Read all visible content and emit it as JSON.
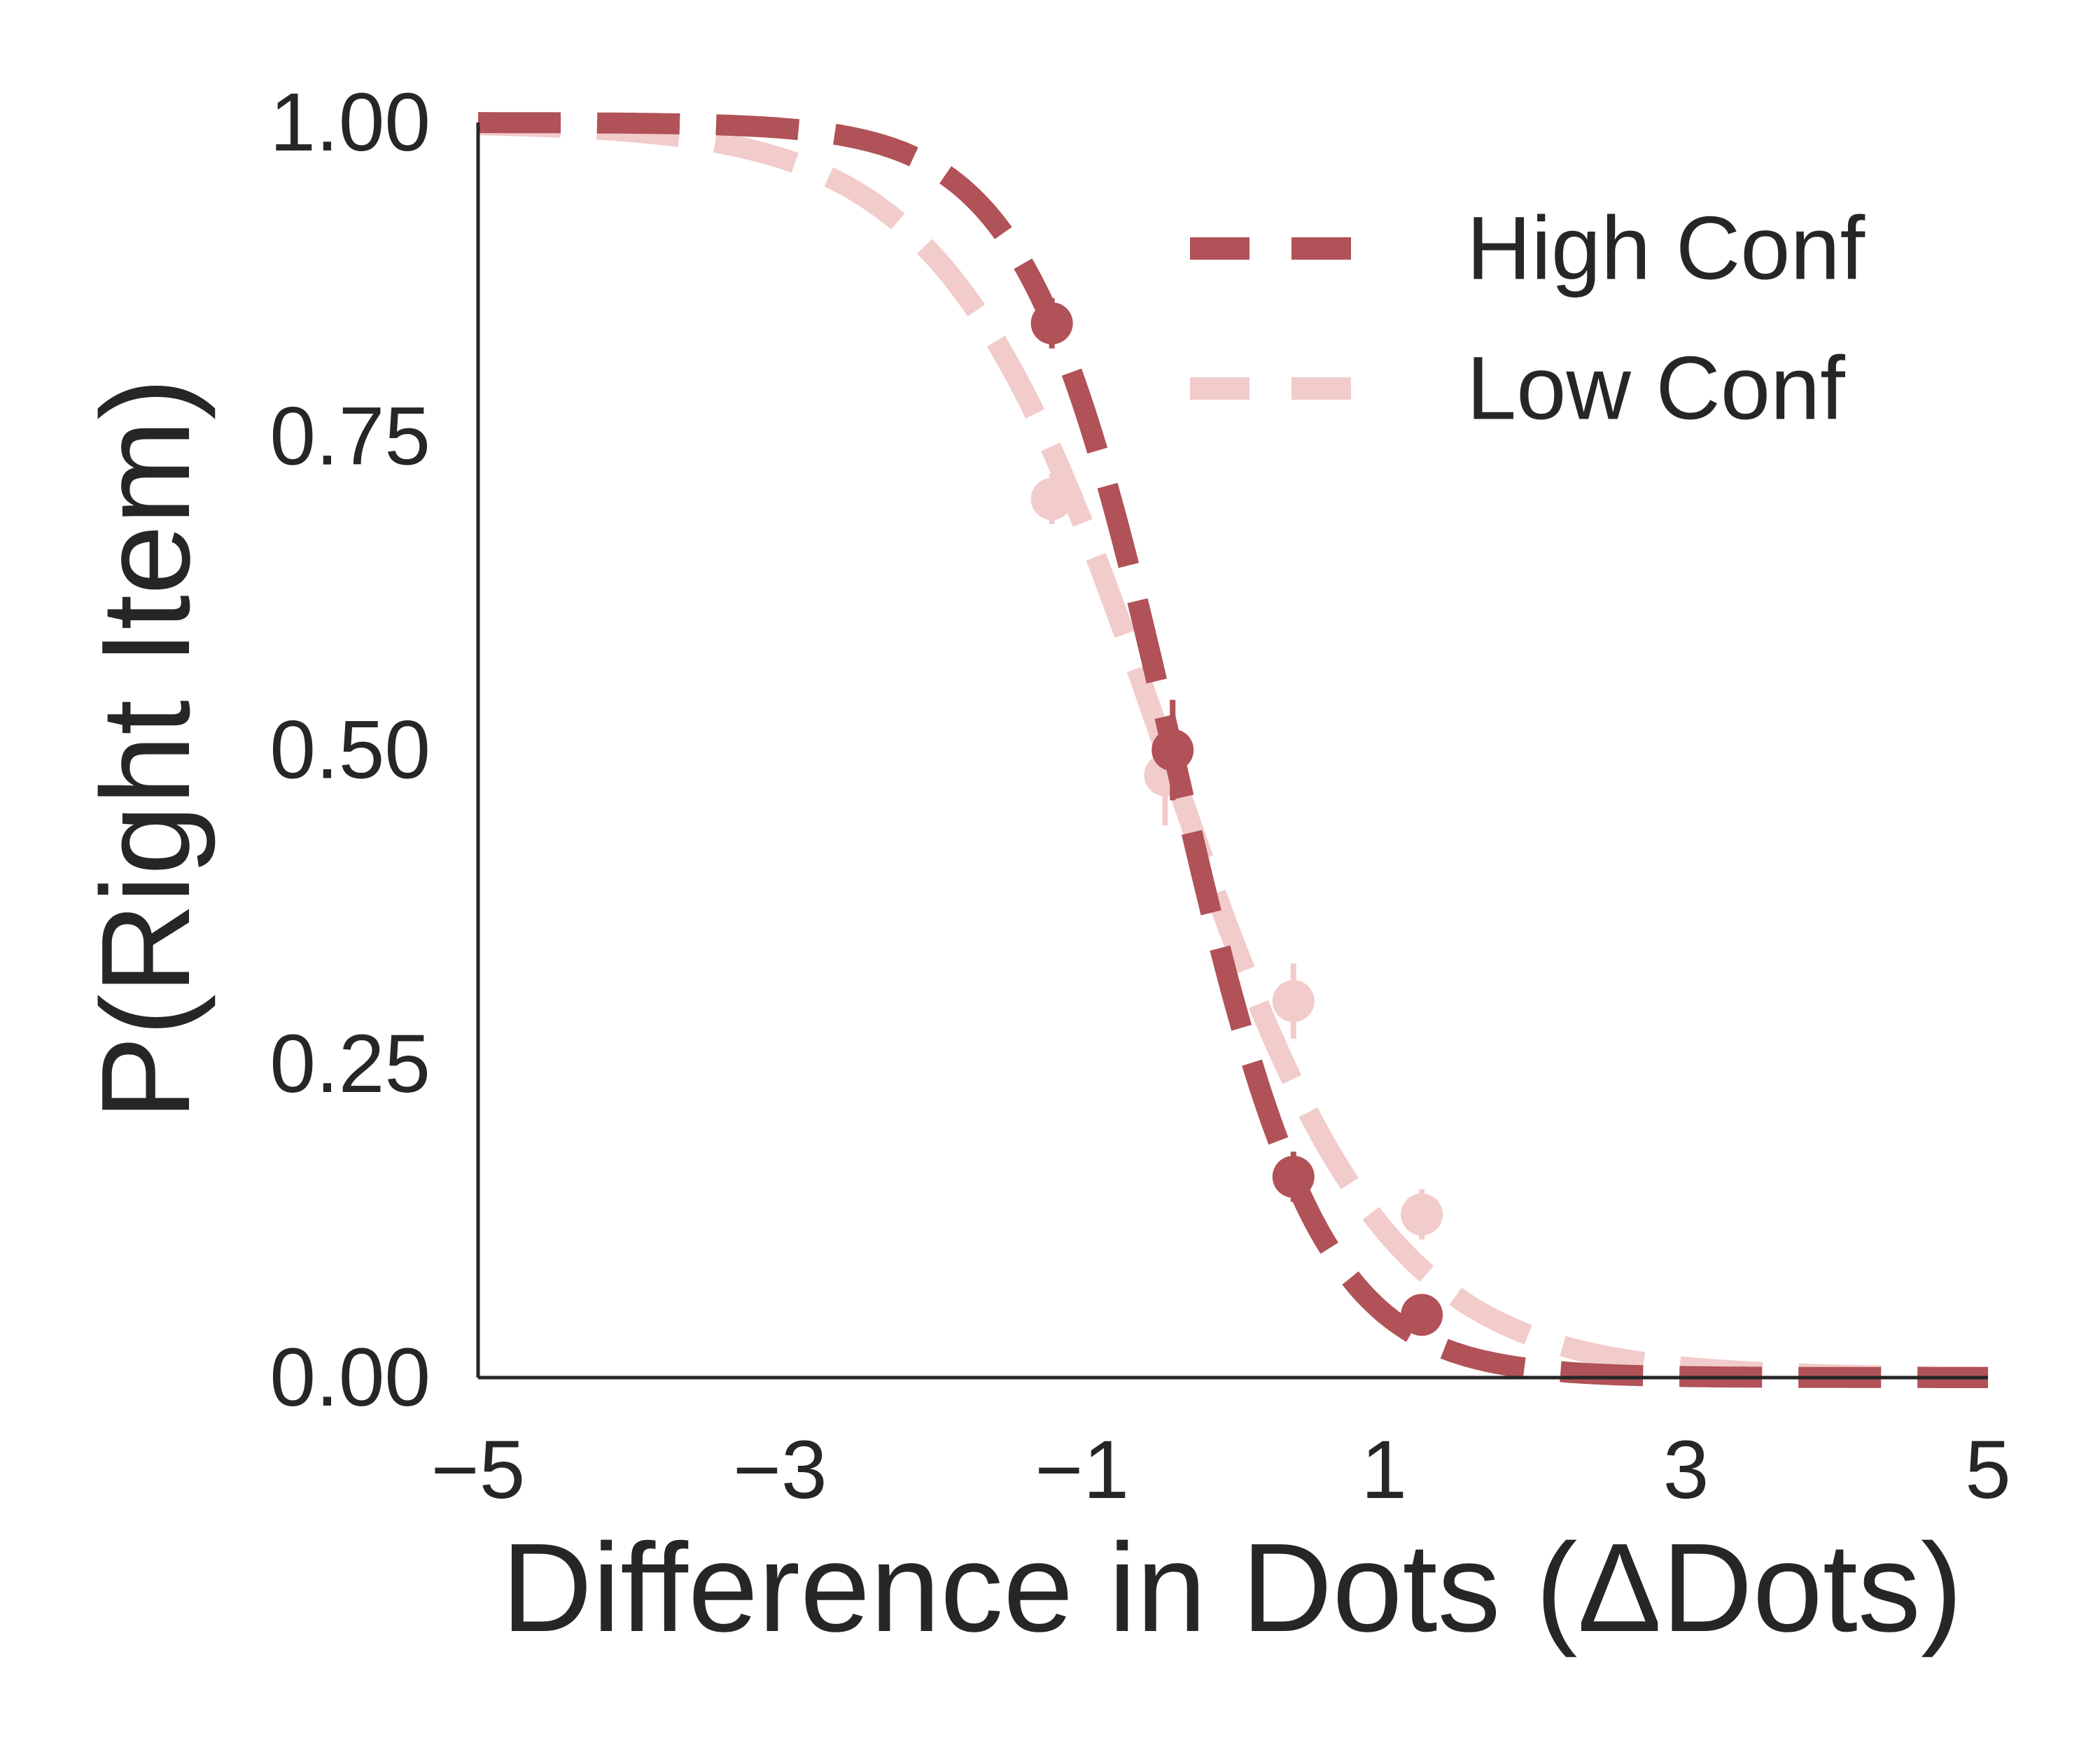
{
  "chart_data": {
    "type": "line",
    "title": "",
    "xlabel": "Difference in Dots (ΔDots)",
    "ylabel": "P(Right Item)",
    "xlim": [
      -5,
      5
    ],
    "ylim": [
      0,
      1
    ],
    "xticks": [
      -5,
      -3,
      -1,
      1,
      3,
      5
    ],
    "xtick_labels": [
      "−5",
      "−3",
      "−1",
      "1",
      "3",
      "5"
    ],
    "yticks": [
      0,
      0.25,
      0.5,
      0.75,
      1
    ],
    "ytick_labels": [
      "0.00",
      "0.25",
      "0.50",
      "0.75",
      "1.00"
    ],
    "grid": false,
    "legend_position": "top-right",
    "series": [
      {
        "name": "High Conf",
        "color": "#b05257",
        "curve": {
          "type": "logistic",
          "midpoint": -0.4,
          "scale": 0.48
        },
        "points": [
          {
            "x": -1.2,
            "y": 0.84,
            "err": 0.02
          },
          {
            "x": -0.4,
            "y": 0.5,
            "err": 0.04
          },
          {
            "x": 0.4,
            "y": 0.16,
            "err": 0.02
          },
          {
            "x": 1.25,
            "y": 0.05,
            "err": 0.01
          }
        ]
      },
      {
        "name": "Low Conf",
        "color": "#f2cbcb",
        "curve": {
          "type": "logistic",
          "midpoint": -0.45,
          "scale": 0.72
        },
        "points": [
          {
            "x": -1.2,
            "y": 0.7,
            "err": 0.02
          },
          {
            "x": -0.45,
            "y": 0.48,
            "err": 0.04
          },
          {
            "x": 0.4,
            "y": 0.3,
            "err": 0.03
          },
          {
            "x": 1.25,
            "y": 0.13,
            "err": 0.02
          }
        ]
      }
    ]
  }
}
